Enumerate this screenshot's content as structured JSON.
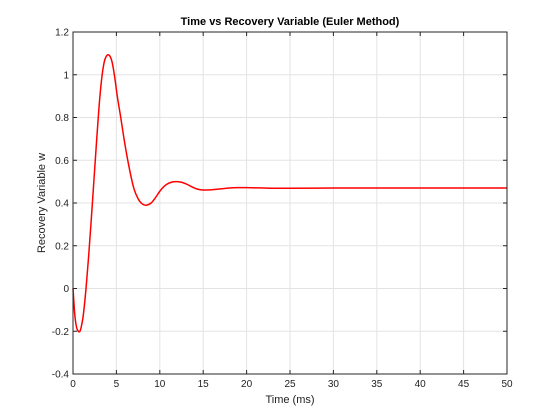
{
  "chart_data": {
    "type": "line",
    "title": "Time vs Recovery Variable (Euler Method)",
    "xlabel": "Time (ms)",
    "ylabel": "Recovery Variable w",
    "xlim": [
      0,
      50
    ],
    "ylim": [
      -0.4,
      1.2
    ],
    "xticks": [
      0,
      5,
      10,
      15,
      20,
      25,
      30,
      35,
      40,
      45,
      50
    ],
    "yticks": [
      -0.4,
      -0.2,
      0,
      0.2,
      0.4,
      0.6,
      0.8,
      1,
      1.2
    ],
    "xtick_labels": [
      "0",
      "5",
      "10",
      "15",
      "20",
      "25",
      "30",
      "35",
      "40",
      "45",
      "50"
    ],
    "ytick_labels": [
      "-0.4",
      "-0.2",
      "0",
      "0.2",
      "0.4",
      "0.6",
      "0.8",
      "1",
      "1.2"
    ],
    "grid": true,
    "series": [
      {
        "color": "#ff0000",
        "x": [
          0,
          0.2,
          0.4,
          0.6,
          0.8,
          1.0,
          1.2,
          1.5,
          1.8,
          2.1,
          2.4,
          2.7,
          3.0,
          3.3,
          3.6,
          3.9,
          4.2,
          4.5,
          4.8,
          5.1,
          5.5,
          6.0,
          6.5,
          7.0,
          7.5,
          8.0,
          8.5,
          9.0,
          9.5,
          10.0,
          10.5,
          11.0,
          11.5,
          12.0,
          12.5,
          13.0,
          13.5,
          14.0,
          14.5,
          15.0,
          15.5,
          16.0,
          17.0,
          18.0,
          19.0,
          20.0,
          21.0,
          22.0,
          23.0,
          25.0,
          30.0,
          35.0,
          40.0,
          45.0,
          50.0
        ],
        "y": [
          0,
          -0.12,
          -0.18,
          -0.2,
          -0.2,
          -0.17,
          -0.12,
          0.0,
          0.15,
          0.32,
          0.5,
          0.68,
          0.85,
          0.98,
          1.06,
          1.09,
          1.09,
          1.06,
          0.99,
          0.9,
          0.8,
          0.67,
          0.56,
          0.47,
          0.42,
          0.395,
          0.39,
          0.4,
          0.425,
          0.455,
          0.478,
          0.492,
          0.499,
          0.5,
          0.497,
          0.49,
          0.48,
          0.47,
          0.463,
          0.461,
          0.461,
          0.462,
          0.466,
          0.47,
          0.472,
          0.472,
          0.471,
          0.47,
          0.469,
          0.469,
          0.47,
          0.47,
          0.47,
          0.47,
          0.47
        ]
      }
    ]
  }
}
